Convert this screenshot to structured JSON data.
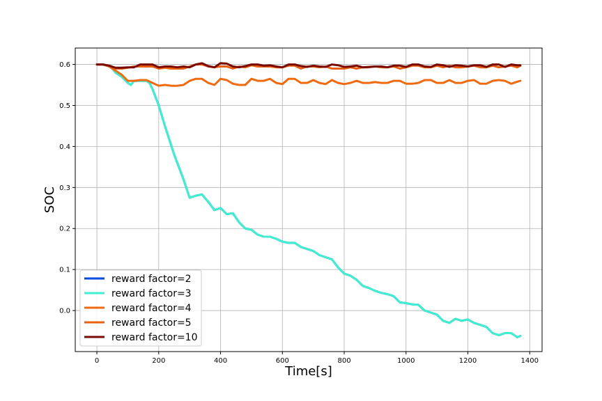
{
  "chart_data": {
    "type": "line",
    "title": "",
    "xlabel": "Time[s]",
    "ylabel": "SOC",
    "xlim": [
      -70,
      1440
    ],
    "ylim": [
      -0.1,
      0.64
    ],
    "xticks": [
      0,
      200,
      400,
      600,
      800,
      1000,
      1200,
      1400
    ],
    "xtick_labels": [
      "0",
      "200",
      "400",
      "600",
      "800",
      "1000",
      "1200",
      "1400"
    ],
    "yticks": [
      0.0,
      0.1,
      0.2,
      0.3,
      0.4,
      0.5,
      0.6
    ],
    "ytick_labels": [
      "0.0",
      "0.1",
      "0.2",
      "0.3",
      "0.4",
      "0.5",
      "0.6"
    ],
    "grid": true,
    "legend_position": "lower-left",
    "series": [
      {
        "name": "reward factor=2",
        "color": "#0048e0",
        "x": [
          0,
          20,
          40,
          50,
          60,
          80,
          100,
          110,
          120,
          140,
          160,
          170,
          180,
          200,
          220,
          250,
          280,
          300,
          320,
          340,
          360,
          380,
          400,
          420,
          440,
          460,
          480,
          500,
          520,
          540,
          560,
          580,
          600,
          620,
          640,
          660,
          680,
          700,
          720,
          740,
          760,
          780,
          800,
          820,
          840,
          860,
          880,
          900,
          920,
          940,
          960,
          980,
          1000,
          1020,
          1040,
          1060,
          1080,
          1100,
          1120,
          1140,
          1160,
          1180,
          1200,
          1220,
          1240,
          1260,
          1280,
          1300,
          1320,
          1340,
          1360,
          1370
        ],
        "y": [
          0.6,
          0.6,
          0.595,
          0.59,
          0.58,
          0.57,
          0.555,
          0.55,
          0.56,
          0.56,
          0.56,
          0.555,
          0.54,
          0.5,
          0.45,
          0.38,
          0.32,
          0.275,
          0.28,
          0.283,
          0.265,
          0.245,
          0.25,
          0.235,
          0.237,
          0.215,
          0.2,
          0.197,
          0.185,
          0.18,
          0.18,
          0.175,
          0.168,
          0.165,
          0.165,
          0.155,
          0.15,
          0.145,
          0.135,
          0.13,
          0.125,
          0.105,
          0.09,
          0.085,
          0.075,
          0.06,
          0.055,
          0.048,
          0.043,
          0.04,
          0.035,
          0.02,
          0.018,
          0.015,
          0.014,
          0.0,
          -0.005,
          -0.01,
          -0.025,
          -0.03,
          -0.02,
          -0.025,
          -0.022,
          -0.03,
          -0.035,
          -0.04,
          -0.055,
          -0.06,
          -0.055,
          -0.055,
          -0.065,
          -0.062
        ]
      },
      {
        "name": "reward factor=3",
        "color": "#40eed0",
        "x": [
          0,
          20,
          40,
          50,
          60,
          80,
          100,
          110,
          120,
          140,
          160,
          170,
          180,
          200,
          220,
          250,
          280,
          300,
          320,
          340,
          360,
          380,
          400,
          420,
          440,
          460,
          480,
          500,
          520,
          540,
          560,
          580,
          600,
          620,
          640,
          660,
          680,
          700,
          720,
          740,
          760,
          780,
          800,
          820,
          840,
          860,
          880,
          900,
          920,
          940,
          960,
          980,
          1000,
          1020,
          1040,
          1060,
          1080,
          1100,
          1120,
          1140,
          1160,
          1180,
          1200,
          1220,
          1240,
          1260,
          1280,
          1300,
          1320,
          1340,
          1360,
          1370
        ],
        "y": [
          0.6,
          0.6,
          0.595,
          0.59,
          0.58,
          0.57,
          0.555,
          0.55,
          0.56,
          0.56,
          0.56,
          0.555,
          0.54,
          0.5,
          0.45,
          0.38,
          0.32,
          0.275,
          0.28,
          0.283,
          0.265,
          0.245,
          0.25,
          0.235,
          0.237,
          0.215,
          0.2,
          0.197,
          0.185,
          0.18,
          0.18,
          0.175,
          0.168,
          0.165,
          0.165,
          0.155,
          0.15,
          0.145,
          0.135,
          0.13,
          0.125,
          0.105,
          0.09,
          0.085,
          0.075,
          0.06,
          0.055,
          0.048,
          0.043,
          0.04,
          0.035,
          0.02,
          0.018,
          0.015,
          0.014,
          0.0,
          -0.005,
          -0.01,
          -0.025,
          -0.03,
          -0.02,
          -0.025,
          -0.022,
          -0.03,
          -0.035,
          -0.04,
          -0.055,
          -0.06,
          -0.055,
          -0.055,
          -0.065,
          -0.062
        ]
      },
      {
        "name": "reward factor=4",
        "color": "#f06a10",
        "x": [
          0,
          20,
          40,
          60,
          80,
          100,
          120,
          140,
          160,
          180,
          200,
          220,
          240,
          260,
          280,
          300,
          320,
          340,
          360,
          380,
          400,
          420,
          440,
          460,
          480,
          500,
          520,
          540,
          560,
          580,
          600,
          620,
          640,
          660,
          680,
          700,
          720,
          740,
          760,
          780,
          800,
          820,
          840,
          860,
          880,
          900,
          920,
          940,
          960,
          980,
          1000,
          1020,
          1040,
          1060,
          1080,
          1100,
          1120,
          1140,
          1160,
          1180,
          1200,
          1220,
          1240,
          1260,
          1280,
          1300,
          1320,
          1340,
          1360,
          1370
        ],
        "y": [
          0.6,
          0.6,
          0.595,
          0.585,
          0.575,
          0.56,
          0.56,
          0.562,
          0.562,
          0.555,
          0.548,
          0.55,
          0.548,
          0.548,
          0.55,
          0.56,
          0.565,
          0.565,
          0.555,
          0.55,
          0.565,
          0.562,
          0.553,
          0.55,
          0.55,
          0.565,
          0.56,
          0.56,
          0.565,
          0.555,
          0.552,
          0.565,
          0.565,
          0.555,
          0.555,
          0.562,
          0.555,
          0.552,
          0.562,
          0.555,
          0.552,
          0.555,
          0.56,
          0.555,
          0.555,
          0.557,
          0.555,
          0.555,
          0.56,
          0.56,
          0.553,
          0.553,
          0.555,
          0.562,
          0.562,
          0.555,
          0.555,
          0.562,
          0.555,
          0.555,
          0.56,
          0.562,
          0.553,
          0.553,
          0.56,
          0.562,
          0.56,
          0.553,
          0.558,
          0.56
        ]
      },
      {
        "name": "reward factor=5",
        "color": "#e86010",
        "x": [
          0,
          20,
          40,
          60,
          80,
          100,
          120,
          140,
          160,
          180,
          200,
          220,
          240,
          260,
          280,
          300,
          320,
          340,
          360,
          380,
          400,
          420,
          440,
          460,
          480,
          500,
          520,
          540,
          560,
          580,
          600,
          620,
          640,
          660,
          680,
          700,
          720,
          740,
          760,
          780,
          800,
          820,
          840,
          860,
          880,
          900,
          920,
          940,
          960,
          980,
          1000,
          1020,
          1040,
          1060,
          1080,
          1100,
          1120,
          1140,
          1160,
          1180,
          1200,
          1220,
          1240,
          1260,
          1280,
          1300,
          1320,
          1340,
          1360,
          1370
        ],
        "y": [
          0.6,
          0.6,
          0.595,
          0.59,
          0.59,
          0.592,
          0.595,
          0.595,
          0.595,
          0.595,
          0.59,
          0.592,
          0.59,
          0.59,
          0.59,
          0.595,
          0.6,
          0.6,
          0.595,
          0.593,
          0.595,
          0.595,
          0.59,
          0.595,
          0.593,
          0.598,
          0.595,
          0.595,
          0.595,
          0.593,
          0.593,
          0.597,
          0.597,
          0.59,
          0.595,
          0.595,
          0.593,
          0.595,
          0.59,
          0.59,
          0.59,
          0.593,
          0.59,
          0.593,
          0.593,
          0.595,
          0.593,
          0.593,
          0.595,
          0.59,
          0.593,
          0.597,
          0.597,
          0.593,
          0.593,
          0.597,
          0.593,
          0.597,
          0.593,
          0.593,
          0.595,
          0.597,
          0.593,
          0.593,
          0.597,
          0.593,
          0.595,
          0.597,
          0.593,
          0.597
        ]
      },
      {
        "name": "reward factor=10",
        "color": "#7a0a00",
        "x": [
          0,
          20,
          40,
          60,
          80,
          100,
          120,
          140,
          160,
          180,
          200,
          220,
          240,
          260,
          280,
          300,
          320,
          340,
          360,
          380,
          400,
          420,
          440,
          460,
          480,
          500,
          520,
          540,
          560,
          580,
          600,
          620,
          640,
          660,
          680,
          700,
          720,
          740,
          760,
          780,
          800,
          820,
          840,
          860,
          880,
          900,
          920,
          940,
          960,
          980,
          1000,
          1020,
          1040,
          1060,
          1080,
          1100,
          1120,
          1140,
          1160,
          1180,
          1200,
          1220,
          1240,
          1260,
          1280,
          1300,
          1320,
          1340,
          1360,
          1370
        ],
        "y": [
          0.6,
          0.6,
          0.597,
          0.592,
          0.592,
          0.593,
          0.593,
          0.6,
          0.6,
          0.6,
          0.593,
          0.595,
          0.595,
          0.593,
          0.595,
          0.593,
          0.6,
          0.603,
          0.596,
          0.593,
          0.603,
          0.602,
          0.595,
          0.593,
          0.596,
          0.6,
          0.6,
          0.597,
          0.598,
          0.595,
          0.593,
          0.6,
          0.6,
          0.596,
          0.594,
          0.597,
          0.595,
          0.594,
          0.6,
          0.598,
          0.594,
          0.595,
          0.597,
          0.593,
          0.594,
          0.595,
          0.595,
          0.593,
          0.597,
          0.597,
          0.594,
          0.6,
          0.6,
          0.595,
          0.594,
          0.6,
          0.598,
          0.594,
          0.598,
          0.597,
          0.595,
          0.598,
          0.598,
          0.594,
          0.6,
          0.6,
          0.594,
          0.6,
          0.598,
          0.598
        ]
      }
    ]
  }
}
